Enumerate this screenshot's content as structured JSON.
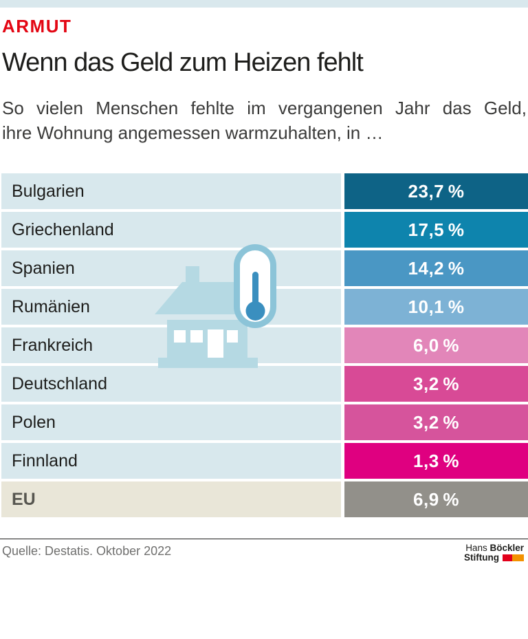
{
  "page": {
    "kicker": "ARMUT",
    "title": "Wenn das Geld zum Heizen fehlt",
    "subtitle_line1": "So vielen Menschen fehlte im vergangenen Jahr das Geld,",
    "subtitle_line2": "ihre Wohnung angemessen warmzuhalten, in …"
  },
  "table": {
    "rows": [
      {
        "label": "Bulgarien",
        "value_label": "23,7 %",
        "value": 23.7,
        "block_color": "#0e6386",
        "label_bg": "#d8e8ed",
        "label_color": "#1d1d1b",
        "label_bold": false
      },
      {
        "label": "Griechenland",
        "value_label": "17,5 %",
        "value": 17.5,
        "block_color": "#0e84ad",
        "label_bg": "#d8e8ed",
        "label_color": "#1d1d1b",
        "label_bold": false
      },
      {
        "label": "Spanien",
        "value_label": "14,2 %",
        "value": 14.2,
        "block_color": "#4a97c4",
        "label_bg": "#d8e8ed",
        "label_color": "#1d1d1b",
        "label_bold": false
      },
      {
        "label": "Rumänien",
        "value_label": "10,1 %",
        "value": 10.1,
        "block_color": "#7db2d5",
        "label_bg": "#d8e8ed",
        "label_color": "#1d1d1b",
        "label_bold": false
      },
      {
        "label": "Frankreich",
        "value_label": "6,0 %",
        "value": 6.0,
        "block_color": "#e286b9",
        "label_bg": "#d8e8ed",
        "label_color": "#1d1d1b",
        "label_bold": false
      },
      {
        "label": "Deutschland",
        "value_label": "3,2 %",
        "value": 3.2,
        "block_color": "#d84a96",
        "label_bg": "#d8e8ed",
        "label_color": "#1d1d1b",
        "label_bold": false
      },
      {
        "label": "Polen",
        "value_label": "3,2 %",
        "value": 3.2,
        "block_color": "#d6549c",
        "label_bg": "#d8e8ed",
        "label_color": "#1d1d1b",
        "label_bold": false
      },
      {
        "label": "Finnland",
        "value_label": "1,3 %",
        "value": 1.3,
        "block_color": "#df0080",
        "label_bg": "#d8e8ed",
        "label_color": "#1d1d1b",
        "label_bold": false
      },
      {
        "label": "EU",
        "value_label": "6,9 %",
        "value": 6.9,
        "block_color": "#92908a",
        "label_bg": "#e9e6d8",
        "label_color": "#575650",
        "label_bold": true
      }
    ]
  },
  "icon": {
    "name": "house-thermometer",
    "house_color": "#b5d9e3",
    "ring_color": "#8cc4d8",
    "mercury_color": "#3a8fbf",
    "window_color": "#ffffff"
  },
  "footer": {
    "source": "Quelle: Destatis. Oktober 2022",
    "logo": {
      "line1_regular": "Hans",
      "line1_bold": "Böckler",
      "line2_bold": "Stiftung",
      "square1_color": "#e2001a",
      "square2_color": "#f39200"
    }
  },
  "colors": {
    "kicker": "#e30613",
    "top_strip": "#d9e8ed",
    "title": "#1d1d1b",
    "subtitle": "#3a3a39",
    "source_text": "#6f6f6e"
  },
  "chart_data": {
    "type": "table",
    "title": "Wenn das Geld zum Heizen fehlt",
    "subtitle": "So vielen Menschen fehlte im vergangenen Jahr das Geld, ihre Wohnung angemessen warmzuhalten, in …",
    "categories": [
      "Bulgarien",
      "Griechenland",
      "Spanien",
      "Rumänien",
      "Frankreich",
      "Deutschland",
      "Polen",
      "Finnland",
      "EU"
    ],
    "values": [
      23.7,
      17.5,
      14.2,
      10.1,
      6.0,
      3.2,
      3.2,
      1.3,
      6.9
    ],
    "unit": "%",
    "source": "Quelle: Destatis. Oktober 2022",
    "legend_position": "none",
    "note": "Equal-width value blocks; block color encodes magnitude (dark blue = high, pink/magenta = low, gray = EU average)"
  }
}
